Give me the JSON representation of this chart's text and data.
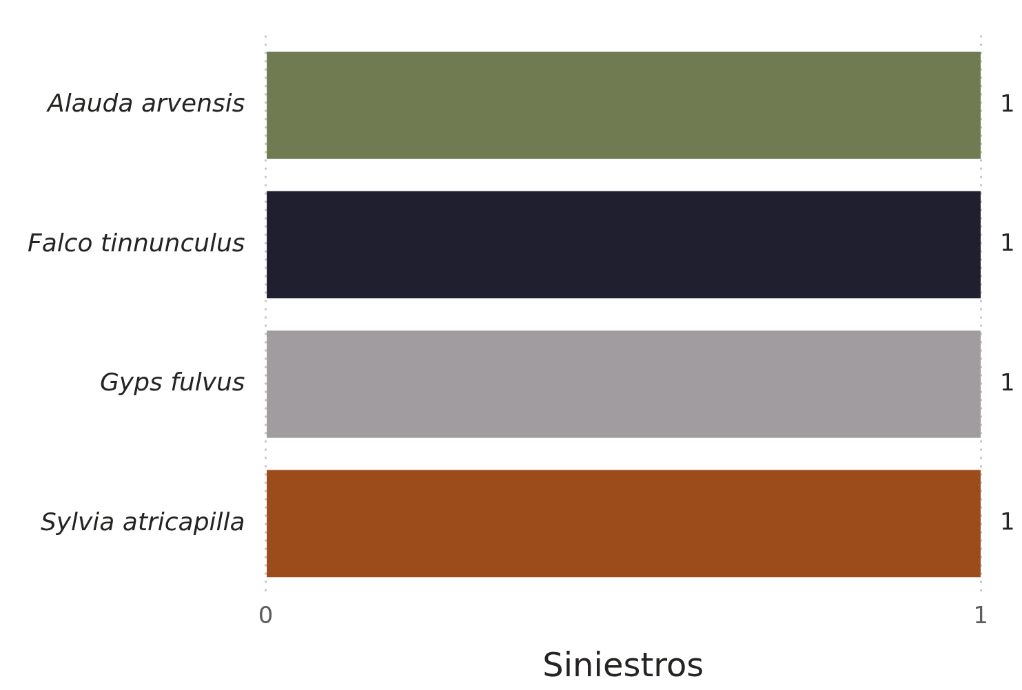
{
  "chart_data": {
    "type": "bar",
    "orientation": "horizontal",
    "xlabel": "Siniestros",
    "categories": [
      "Alauda arvensis",
      "Falco tinnunculus",
      "Gyps fulvus",
      "Sylvia atricapilla"
    ],
    "values": [
      1,
      1,
      1,
      1
    ],
    "colors": [
      "#707b52",
      "#1f1f30",
      "#a09c9f",
      "#9c4b1a"
    ],
    "xlim": [
      0,
      1
    ],
    "xticks": [
      0,
      1
    ],
    "grid": "x",
    "data_labels": true
  }
}
